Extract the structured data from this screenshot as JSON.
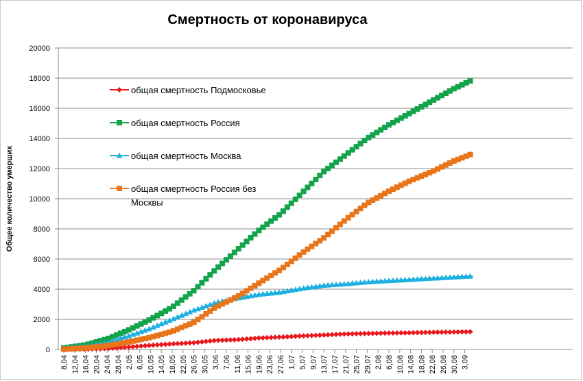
{
  "chart_data": {
    "type": "line",
    "title": "Смертность от коронавируса",
    "ylabel": "Общее количество умерших",
    "ylim": [
      0,
      20000
    ],
    "yticks": [
      0,
      2000,
      4000,
      6000,
      8000,
      10000,
      12000,
      14000,
      16000,
      18000,
      20000
    ],
    "ytick_labels": [
      "0",
      "2000",
      "4000",
      "6000",
      "8000",
      "10000",
      "12000",
      "14000",
      "16000",
      "18000",
      "20000"
    ],
    "xtick_labels": [
      "8,04",
      "12,04",
      "16,04",
      "20,04",
      "24,04",
      "28,04",
      "2,05",
      "6,05",
      "10,05",
      "14,05",
      "18,05",
      "22,05",
      "26,05",
      "30,05",
      "3,06",
      "7,06",
      "11,06",
      "15,06",
      "19,06",
      "23,06",
      "27,06",
      "1,07",
      "5,07",
      "9,07",
      "13,07",
      "17,07",
      "21,07",
      "25,07",
      "29,07",
      "2,08",
      "6,08",
      "10,08",
      "14,08",
      "18,08",
      "22,08",
      "26,08",
      "30,08",
      "3,09"
    ],
    "days_per_tick": 4,
    "grid": true,
    "legend": "inside-left",
    "series": [
      {
        "name": "общая смертность Подмосковье",
        "color": "#e8191c",
        "marker": "diamond",
        "day": [
          0,
          8,
          16,
          24,
          32,
          40,
          48,
          56,
          64,
          72,
          80,
          88,
          96,
          104,
          112,
          120,
          128,
          136,
          144,
          151
        ],
        "values": [
          10,
          20,
          60,
          160,
          280,
          370,
          450,
          600,
          650,
          760,
          820,
          900,
          960,
          1030,
          1060,
          1090,
          1110,
          1140,
          1160,
          1180
        ]
      },
      {
        "name": "общая смертность Россия",
        "color": "#13a34b",
        "marker": "square",
        "day": [
          0,
          8,
          16,
          24,
          32,
          40,
          48,
          56,
          64,
          72,
          80,
          88,
          96,
          104,
          112,
          120,
          128,
          136,
          144,
          151
        ],
        "values": [
          100,
          300,
          700,
          1300,
          2000,
          2800,
          3900,
          5300,
          6600,
          7900,
          9000,
          10400,
          11800,
          12900,
          14000,
          14900,
          15700,
          16500,
          17300,
          17900
        ]
      },
      {
        "name": "общая смертность Москва",
        "color": "#1fb0e0",
        "marker": "triangle",
        "day": [
          0,
          8,
          16,
          24,
          32,
          40,
          48,
          56,
          64,
          72,
          80,
          88,
          96,
          104,
          112,
          120,
          128,
          136,
          144,
          151
        ],
        "values": [
          80,
          200,
          450,
          900,
          1400,
          2000,
          2600,
          3100,
          3400,
          3650,
          3800,
          4050,
          4250,
          4350,
          4480,
          4560,
          4640,
          4720,
          4800,
          4870
        ]
      },
      {
        "name": "общая смертность Россия без Москвы",
        "color": "#e8751a",
        "marker": "square",
        "day": [
          0,
          8,
          16,
          24,
          32,
          40,
          48,
          56,
          64,
          72,
          80,
          88,
          96,
          104,
          112,
          120,
          128,
          136,
          144,
          151
        ],
        "values": [
          20,
          100,
          250,
          500,
          800,
          1200,
          1800,
          2800,
          3500,
          4400,
          5300,
          6400,
          7400,
          8600,
          9700,
          10500,
          11200,
          11800,
          12500,
          13000
        ]
      }
    ]
  }
}
